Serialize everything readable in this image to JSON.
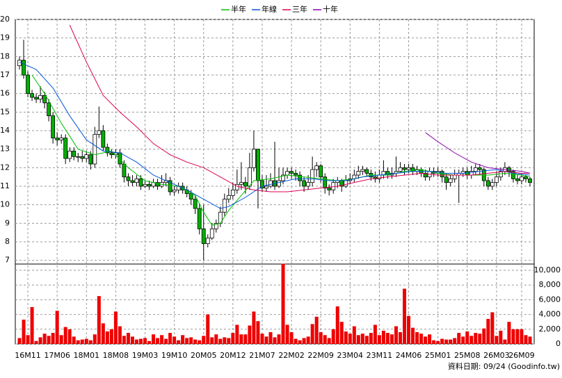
{
  "chart_data": {
    "type": "candlestick",
    "legend_position": "top",
    "grid": true,
    "up_color": "#ffffff",
    "down_color": "#00b000",
    "volume_color": "#ee0000",
    "footnote": "資料日期: 09/24 (Goodinfo.tw)",
    "xlim": [
      -1,
      123
    ],
    "xticks": [
      {
        "value": 2,
        "label": "16M11"
      },
      {
        "value": 9,
        "label": "17M06"
      },
      {
        "value": 16,
        "label": "18M01"
      },
      {
        "value": 23,
        "label": "18M08"
      },
      {
        "value": 30,
        "label": "19M03"
      },
      {
        "value": 37,
        "label": "19M10"
      },
      {
        "value": 44,
        "label": "20M05"
      },
      {
        "value": 51,
        "label": "20M12"
      },
      {
        "value": 58,
        "label": "21M07"
      },
      {
        "value": 65,
        "label": "22M02"
      },
      {
        "value": 72,
        "label": "22M09"
      },
      {
        "value": 79,
        "label": "23M04"
      },
      {
        "value": 86,
        "label": "23M11"
      },
      {
        "value": 93,
        "label": "24M06"
      },
      {
        "value": 100,
        "label": "25M01"
      },
      {
        "value": 107,
        "label": "25M08"
      },
      {
        "value": 114,
        "label": "26M03"
      },
      {
        "value": 120,
        "label": "26M09"
      }
    ],
    "ylim": [
      6.8,
      20
    ],
    "yticks": [
      7,
      8,
      9,
      10,
      11,
      12,
      13,
      14,
      15,
      16,
      17,
      18,
      19,
      20
    ],
    "y2lim": [
      0,
      10850
    ],
    "y2ticks": [
      0,
      {
        "value": 2000,
        "label": "2,000"
      },
      {
        "value": 4000,
        "label": "4,000"
      },
      {
        "value": 6000,
        "label": "6,000"
      },
      {
        "value": 8000,
        "label": "8,000"
      },
      {
        "value": 10000,
        "label": "10,000"
      }
    ],
    "open": [
      17.5,
      17.8,
      17.0,
      16.0,
      15.8,
      15.7,
      15.9,
      15.5,
      14.8,
      13.6,
      13.5,
      13.6,
      12.5,
      12.9,
      12.6,
      12.6,
      12.5,
      12.7,
      12.2,
      13.8,
      14.0,
      13.1,
      12.8,
      12.7,
      12.8,
      12.2,
      11.5,
      11.3,
      11.2,
      11.4,
      11.0,
      11.1,
      11.0,
      11.2,
      11.0,
      11.2,
      11.3,
      10.7,
      10.8,
      11.0,
      10.8,
      10.6,
      10.3,
      9.8,
      8.7,
      7.9,
      8.2,
      8.7,
      9.0,
      9.6,
      10.3,
      10.5,
      10.8,
      11.1,
      11.2,
      11.0,
      12.0,
      13.0,
      11.3,
      10.9,
      11.0,
      11.3,
      11.0,
      11.3,
      11.6,
      11.8,
      11.7,
      11.6,
      11.3,
      11.0,
      11.2,
      11.9,
      12.1,
      11.5,
      10.9,
      10.8,
      11.2,
      11.3,
      11.0,
      11.3,
      11.4,
      11.6,
      11.8,
      11.9,
      11.7,
      11.5,
      11.4,
      11.6,
      11.8,
      11.6,
      11.7,
      11.8,
      12.0,
      11.9,
      12.0,
      11.8,
      11.9,
      11.7,
      11.5,
      11.8,
      11.7,
      11.8,
      11.5,
      11.2,
      11.4,
      11.6,
      11.7,
      11.8,
      11.6,
      11.8,
      12.0,
      11.9,
      11.3,
      11.0,
      11.2,
      11.5,
      11.8,
      12.0,
      11.8,
      11.4,
      11.3,
      11.5,
      11.4
    ],
    "high": [
      18.0,
      18.9,
      17.2,
      16.2,
      16.0,
      16.4,
      16.1,
      15.7,
      15.0,
      13.9,
      13.8,
      13.8,
      13.1,
      13.1,
      12.8,
      12.9,
      12.9,
      12.9,
      14.2,
      15.3,
      14.3,
      13.3,
      13.0,
      13.0,
      13.0,
      12.4,
      11.7,
      11.6,
      11.6,
      11.6,
      11.3,
      11.3,
      11.4,
      11.4,
      11.6,
      11.7,
      11.5,
      11.0,
      11.2,
      11.2,
      11.0,
      10.8,
      10.5,
      10.1,
      10.0,
      8.4,
      9.0,
      9.2,
      9.9,
      10.6,
      10.9,
      11.2,
      11.9,
      12.3,
      11.5,
      12.8,
      14.0,
      13.0,
      11.6,
      11.6,
      11.7,
      13.4,
      12.0,
      12.0,
      12.0,
      12.0,
      11.9,
      11.8,
      11.5,
      11.6,
      12.6,
      12.3,
      12.2,
      11.7,
      11.1,
      11.4,
      11.5,
      11.4,
      11.6,
      11.7,
      11.9,
      12.1,
      12.1,
      12.0,
      11.9,
      11.8,
      11.9,
      12.4,
      12.0,
      12.0,
      12.6,
      12.3,
      12.2,
      12.2,
      12.2,
      12.1,
      12.0,
      11.9,
      12.0,
      12.0,
      12.0,
      11.9,
      11.7,
      11.6,
      11.9,
      11.9,
      12.0,
      12.0,
      12.1,
      12.2,
      12.2,
      12.0,
      11.5,
      11.4,
      11.8,
      12.0,
      12.3,
      12.1,
      11.9,
      11.6,
      11.7,
      11.6,
      11.5
    ],
    "low": [
      17.3,
      16.8,
      15.8,
      15.6,
      15.5,
      15.5,
      15.2,
      14.5,
      13.3,
      13.2,
      13.3,
      12.2,
      12.3,
      12.4,
      12.3,
      12.3,
      12.3,
      11.9,
      12.0,
      13.6,
      12.9,
      12.6,
      12.5,
      12.5,
      12.0,
      11.2,
      11.0,
      11.0,
      11.0,
      10.8,
      10.9,
      10.8,
      10.9,
      10.8,
      10.9,
      11.0,
      10.5,
      10.5,
      10.6,
      10.6,
      10.4,
      10.0,
      9.5,
      8.4,
      7.0,
      7.7,
      8.1,
      8.5,
      8.8,
      9.4,
      10.1,
      10.3,
      10.6,
      10.8,
      10.6,
      10.8,
      11.8,
      9.8,
      10.7,
      10.7,
      10.9,
      10.8,
      10.9,
      11.1,
      11.4,
      11.4,
      11.3,
      11.0,
      10.7,
      10.8,
      11.0,
      11.5,
      11.2,
      10.6,
      10.5,
      10.6,
      10.9,
      10.7,
      10.9,
      11.1,
      11.2,
      11.4,
      11.6,
      11.5,
      11.3,
      11.2,
      11.2,
      11.4,
      11.4,
      11.4,
      11.5,
      11.7,
      11.6,
      11.7,
      11.6,
      11.6,
      11.5,
      11.3,
      11.3,
      11.5,
      11.5,
      11.2,
      10.8,
      11.0,
      11.2,
      10.1,
      11.5,
      11.4,
      11.4,
      11.6,
      11.6,
      11.0,
      10.8,
      10.8,
      11.0,
      11.3,
      11.6,
      11.5,
      11.2,
      11.1,
      11.1,
      11.2,
      11.0
    ],
    "close": [
      17.8,
      17.0,
      16.0,
      15.8,
      15.7,
      15.9,
      15.5,
      14.8,
      13.6,
      13.5,
      13.6,
      12.5,
      12.9,
      12.6,
      12.6,
      12.5,
      12.7,
      12.2,
      13.8,
      14.0,
      13.1,
      12.8,
      12.7,
      12.8,
      12.2,
      11.5,
      11.3,
      11.2,
      11.4,
      11.0,
      11.1,
      11.0,
      11.2,
      11.0,
      11.2,
      11.3,
      10.7,
      10.8,
      11.0,
      10.8,
      10.6,
      10.3,
      9.8,
      8.7,
      7.9,
      8.2,
      8.7,
      9.0,
      9.6,
      10.3,
      10.5,
      10.8,
      11.1,
      11.2,
      11.0,
      12.0,
      13.0,
      11.3,
      10.9,
      11.0,
      11.3,
      11.0,
      11.3,
      11.6,
      11.8,
      11.7,
      11.6,
      11.3,
      11.0,
      11.2,
      11.9,
      12.1,
      11.5,
      10.9,
      10.8,
      11.2,
      11.3,
      11.0,
      11.3,
      11.4,
      11.6,
      11.8,
      11.9,
      11.7,
      11.5,
      11.4,
      11.6,
      11.8,
      11.6,
      11.7,
      11.8,
      12.0,
      11.9,
      12.0,
      11.8,
      11.9,
      11.7,
      11.5,
      11.8,
      11.7,
      11.8,
      11.5,
      11.2,
      11.4,
      11.6,
      11.7,
      11.8,
      11.6,
      11.8,
      12.0,
      11.9,
      11.3,
      11.0,
      11.2,
      11.5,
      11.8,
      12.0,
      11.8,
      11.4,
      11.3,
      11.5,
      11.4,
      11.2
    ],
    "volume": [
      800,
      3300,
      1200,
      5000,
      400,
      900,
      1400,
      1100,
      1500,
      4500,
      1200,
      2300,
      2000,
      1000,
      500,
      600,
      700,
      500,
      1300,
      6500,
      2800,
      1700,
      2000,
      4400,
      2400,
      1100,
      1500,
      1000,
      600,
      700,
      800,
      400,
      1300,
      800,
      1200,
      700,
      1500,
      1000,
      500,
      1200,
      800,
      900,
      600,
      500,
      1100,
      4000,
      900,
      1300,
      700,
      900,
      800,
      1500,
      2600,
      1300,
      1300,
      2500,
      4400,
      3100,
      1400,
      1000,
      1600,
      900,
      1300,
      10900,
      2600,
      1600,
      700,
      500,
      800,
      1000,
      2700,
      3700,
      1600,
      1200,
      800,
      2000,
      5100,
      3000,
      1700,
      1400,
      2400,
      1200,
      1400,
      1100,
      1500,
      2600,
      1200,
      1800,
      1500,
      1300,
      2400,
      1600,
      7500,
      3800,
      2200,
      1600,
      1400,
      1000,
      1300,
      500,
      400,
      700,
      600,
      600,
      800,
      1500,
      1000,
      1700,
      1100,
      1500,
      1400,
      2100,
      3400,
      4300,
      1100,
      1800,
      600,
      3000,
      2000,
      2000,
      2000,
      1200,
      1000
    ],
    "series": [
      {
        "name": "半年",
        "color": "#00c000",
        "x": [
          3,
          6,
          10,
          14,
          18,
          22,
          26,
          30,
          34,
          38,
          42,
          44,
          46,
          48,
          50,
          53,
          56,
          60,
          64,
          68,
          72,
          76,
          80,
          84,
          88,
          92,
          96,
          100,
          104,
          108,
          112,
          116,
          120,
          122
        ],
        "values": [
          17.0,
          16.0,
          14.4,
          13.0,
          12.7,
          12.9,
          12.0,
          11.3,
          11.1,
          11.0,
          10.5,
          9.6,
          8.9,
          9.0,
          9.7,
          10.5,
          11.3,
          11.4,
          11.6,
          11.5,
          11.4,
          11.3,
          11.4,
          11.6,
          11.6,
          11.8,
          11.9,
          11.7,
          11.6,
          11.6,
          11.6,
          11.7,
          11.6,
          11.5
        ]
      },
      {
        "name": "年線",
        "color": "#0055dd",
        "x": [
          0,
          4,
          8,
          12,
          16,
          20,
          24,
          28,
          32,
          36,
          40,
          44,
          48,
          50,
          54,
          58,
          62,
          66,
          70,
          74,
          78,
          82,
          86,
          90,
          94,
          98,
          102,
          106,
          110,
          114,
          118,
          122
        ],
        "values": [
          17.7,
          17.3,
          16.3,
          14.8,
          13.5,
          12.9,
          12.8,
          12.3,
          11.6,
          11.2,
          10.8,
          10.3,
          9.8,
          9.9,
          10.4,
          11.0,
          11.2,
          11.4,
          11.4,
          11.3,
          11.3,
          11.5,
          11.6,
          11.7,
          11.8,
          11.8,
          11.7,
          11.7,
          11.8,
          11.9,
          11.7,
          11.6
        ]
      },
      {
        "name": "三年",
        "color": "#dd0055",
        "x": [
          12,
          16,
          20,
          24,
          28,
          32,
          36,
          40,
          44,
          48,
          52,
          56,
          60,
          64,
          68,
          72,
          76,
          80,
          84,
          88,
          92,
          96,
          100,
          104,
          108,
          112,
          116,
          120,
          122
        ],
        "values": [
          19.7,
          17.7,
          15.9,
          15.0,
          14.2,
          13.3,
          12.7,
          12.3,
          12.0,
          11.5,
          11.0,
          10.8,
          10.7,
          10.7,
          10.8,
          10.9,
          11.0,
          11.2,
          11.4,
          11.5,
          11.6,
          11.7,
          11.6,
          11.6,
          11.6,
          11.7,
          11.8,
          11.7,
          11.7
        ]
      },
      {
        "name": "十年",
        "color": "#8800aa",
        "x": [
          97,
          100,
          104,
          108,
          112,
          116,
          120,
          122
        ],
        "values": [
          13.9,
          13.4,
          12.8,
          12.3,
          12.0,
          11.9,
          11.8,
          11.7
        ]
      }
    ]
  }
}
